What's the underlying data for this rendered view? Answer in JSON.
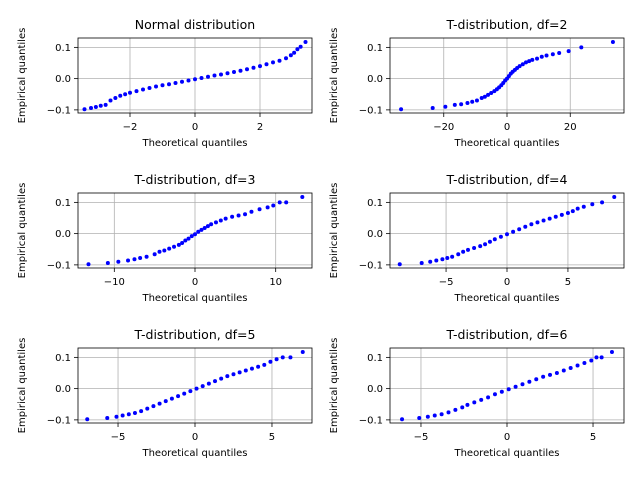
{
  "figure": {
    "background": "#ffffff",
    "marker_color": "#0000ff",
    "grid_color": "#b0b0b0"
  },
  "chart_data": [
    {
      "type": "scatter",
      "title": "Normal distribution",
      "xlabel": "Theoretical quantiles",
      "ylabel": "Empirical quantiles",
      "xlim": [
        -3.6,
        3.6
      ],
      "ylim": [
        -0.11,
        0.13
      ],
      "xticks": [
        -2,
        0,
        2
      ],
      "xtick_labels": [
        "−2",
        "0",
        "2"
      ],
      "yticks": [
        -0.1,
        0.0,
        0.1
      ],
      "ytick_labels": [
        "−0.1",
        "0.0",
        "0.1"
      ],
      "grid": true,
      "points": [
        [
          -3.4,
          -0.098
        ],
        [
          -3.2,
          -0.094
        ],
        [
          -3.05,
          -0.091
        ],
        [
          -2.9,
          -0.087
        ],
        [
          -2.75,
          -0.084
        ],
        [
          -2.6,
          -0.07
        ],
        [
          -2.45,
          -0.062
        ],
        [
          -2.3,
          -0.055
        ],
        [
          -2.15,
          -0.05
        ],
        [
          -2.0,
          -0.045
        ],
        [
          -1.8,
          -0.04
        ],
        [
          -1.6,
          -0.035
        ],
        [
          -1.4,
          -0.03
        ],
        [
          -1.2,
          -0.025
        ],
        [
          -1.0,
          -0.021
        ],
        [
          -0.8,
          -0.018
        ],
        [
          -0.6,
          -0.014
        ],
        [
          -0.4,
          -0.01
        ],
        [
          -0.2,
          -0.006
        ],
        [
          0.0,
          -0.002
        ],
        [
          0.2,
          0.002
        ],
        [
          0.4,
          0.006
        ],
        [
          0.6,
          0.01
        ],
        [
          0.8,
          0.013
        ],
        [
          1.0,
          0.017
        ],
        [
          1.2,
          0.021
        ],
        [
          1.4,
          0.025
        ],
        [
          1.6,
          0.03
        ],
        [
          1.8,
          0.035
        ],
        [
          2.0,
          0.04
        ],
        [
          2.2,
          0.046
        ],
        [
          2.4,
          0.052
        ],
        [
          2.6,
          0.057
        ],
        [
          2.8,
          0.065
        ],
        [
          2.95,
          0.075
        ],
        [
          3.05,
          0.083
        ],
        [
          3.15,
          0.094
        ],
        [
          3.25,
          0.102
        ],
        [
          3.4,
          0.117
        ]
      ]
    },
    {
      "type": "scatter",
      "title": "T-distribution, df=2",
      "xlabel": "Theoretical quantiles",
      "ylabel": "Empirical quantiles",
      "xlim": [
        -37,
        37
      ],
      "ylim": [
        -0.11,
        0.13
      ],
      "xticks": [
        -20,
        0,
        20
      ],
      "xtick_labels": [
        "−20",
        "0",
        "20"
      ],
      "yticks": [
        -0.1,
        0.0,
        0.1
      ],
      "ytick_labels": [
        "−0.1",
        "0.0",
        "0.1"
      ],
      "grid": true,
      "points": [
        [
          -33.5,
          -0.098
        ],
        [
          -23.5,
          -0.094
        ],
        [
          -19.5,
          -0.09
        ],
        [
          -16.5,
          -0.084
        ],
        [
          -14.5,
          -0.082
        ],
        [
          -12.5,
          -0.078
        ],
        [
          -11.0,
          -0.074
        ],
        [
          -9.5,
          -0.07
        ],
        [
          -8.0,
          -0.062
        ],
        [
          -7.0,
          -0.058
        ],
        [
          -6.0,
          -0.052
        ],
        [
          -5.0,
          -0.046
        ],
        [
          -4.0,
          -0.04
        ],
        [
          -3.2,
          -0.034
        ],
        [
          -2.5,
          -0.028
        ],
        [
          -1.8,
          -0.021
        ],
        [
          -1.2,
          -0.014
        ],
        [
          -0.6,
          -0.006
        ],
        [
          0.0,
          0.0
        ],
        [
          0.6,
          0.008
        ],
        [
          1.2,
          0.016
        ],
        [
          1.8,
          0.022
        ],
        [
          2.5,
          0.028
        ],
        [
          3.2,
          0.034
        ],
        [
          4.0,
          0.04
        ],
        [
          5.0,
          0.046
        ],
        [
          6.0,
          0.052
        ],
        [
          7.0,
          0.056
        ],
        [
          8.0,
          0.06
        ],
        [
          9.5,
          0.064
        ],
        [
          11.0,
          0.07
        ],
        [
          12.5,
          0.074
        ],
        [
          14.5,
          0.078
        ],
        [
          16.5,
          0.082
        ],
        [
          19.5,
          0.088
        ],
        [
          23.5,
          0.1
        ],
        [
          33.5,
          0.117
        ]
      ]
    },
    {
      "type": "scatter",
      "title": "T-distribution, df=3",
      "xlabel": "Theoretical quantiles",
      "ylabel": "Empirical quantiles",
      "xlim": [
        -14.5,
        14.5
      ],
      "ylim": [
        -0.11,
        0.13
      ],
      "xticks": [
        -10,
        0,
        10
      ],
      "xtick_labels": [
        "−10",
        "0",
        "10"
      ],
      "yticks": [
        -0.1,
        0.0,
        0.1
      ],
      "ytick_labels": [
        "−0.1",
        "0.0",
        "0.1"
      ],
      "grid": true,
      "points": [
        [
          -13.2,
          -0.098
        ],
        [
          -10.8,
          -0.094
        ],
        [
          -9.5,
          -0.09
        ],
        [
          -8.3,
          -0.086
        ],
        [
          -7.5,
          -0.082
        ],
        [
          -6.8,
          -0.078
        ],
        [
          -6.0,
          -0.074
        ],
        [
          -5.0,
          -0.066
        ],
        [
          -4.4,
          -0.058
        ],
        [
          -3.8,
          -0.054
        ],
        [
          -3.2,
          -0.048
        ],
        [
          -2.6,
          -0.042
        ],
        [
          -2.0,
          -0.036
        ],
        [
          -1.6,
          -0.03
        ],
        [
          -1.2,
          -0.022
        ],
        [
          -0.8,
          -0.016
        ],
        [
          -0.4,
          -0.008
        ],
        [
          0.0,
          -0.002
        ],
        [
          0.4,
          0.006
        ],
        [
          0.8,
          0.012
        ],
        [
          1.2,
          0.018
        ],
        [
          1.6,
          0.024
        ],
        [
          2.0,
          0.03
        ],
        [
          2.6,
          0.036
        ],
        [
          3.2,
          0.042
        ],
        [
          3.8,
          0.048
        ],
        [
          4.6,
          0.054
        ],
        [
          5.4,
          0.058
        ],
        [
          6.2,
          0.062
        ],
        [
          7.0,
          0.07
        ],
        [
          8.0,
          0.078
        ],
        [
          9.0,
          0.084
        ],
        [
          9.7,
          0.09
        ],
        [
          10.5,
          0.1
        ],
        [
          11.3,
          0.1
        ],
        [
          13.3,
          0.117
        ]
      ]
    },
    {
      "type": "scatter",
      "title": "T-distribution, df=4",
      "xlabel": "Theoretical quantiles",
      "ylabel": "Empirical quantiles",
      "xlim": [
        -9.6,
        9.6
      ],
      "ylim": [
        -0.11,
        0.13
      ],
      "xticks": [
        -5,
        0,
        5
      ],
      "xtick_labels": [
        "−5",
        "0",
        "5"
      ],
      "yticks": [
        -0.1,
        0.0,
        0.1
      ],
      "ytick_labels": [
        "−0.1",
        "0.0",
        "0.1"
      ],
      "grid": true,
      "points": [
        [
          -8.8,
          -0.098
        ],
        [
          -7.0,
          -0.094
        ],
        [
          -6.3,
          -0.09
        ],
        [
          -5.8,
          -0.086
        ],
        [
          -5.3,
          -0.082
        ],
        [
          -4.9,
          -0.078
        ],
        [
          -4.5,
          -0.074
        ],
        [
          -4.0,
          -0.066
        ],
        [
          -3.6,
          -0.058
        ],
        [
          -3.2,
          -0.052
        ],
        [
          -2.7,
          -0.046
        ],
        [
          -2.2,
          -0.04
        ],
        [
          -1.8,
          -0.034
        ],
        [
          -1.4,
          -0.026
        ],
        [
          -1.0,
          -0.018
        ],
        [
          -0.5,
          -0.01
        ],
        [
          0.0,
          -0.002
        ],
        [
          0.5,
          0.006
        ],
        [
          1.0,
          0.014
        ],
        [
          1.5,
          0.022
        ],
        [
          2.0,
          0.03
        ],
        [
          2.5,
          0.036
        ],
        [
          3.0,
          0.042
        ],
        [
          3.5,
          0.048
        ],
        [
          4.0,
          0.054
        ],
        [
          4.5,
          0.06
        ],
        [
          5.0,
          0.066
        ],
        [
          5.4,
          0.072
        ],
        [
          5.8,
          0.08
        ],
        [
          6.3,
          0.086
        ],
        [
          7.0,
          0.094
        ],
        [
          7.8,
          0.1
        ],
        [
          8.8,
          0.117
        ]
      ]
    },
    {
      "type": "scatter",
      "title": "T-distribution, df=5",
      "xlabel": "Theoretical quantiles",
      "ylabel": "Empirical quantiles",
      "xlim": [
        -7.6,
        7.6
      ],
      "ylim": [
        -0.11,
        0.13
      ],
      "xticks": [
        -5,
        0,
        5
      ],
      "xtick_labels": [
        "−5",
        "0",
        "5"
      ],
      "yticks": [
        -0.1,
        0.0,
        0.1
      ],
      "ytick_labels": [
        "−0.1",
        "0.0",
        "0.1"
      ],
      "grid": true,
      "points": [
        [
          -7.0,
          -0.098
        ],
        [
          -5.7,
          -0.094
        ],
        [
          -5.1,
          -0.09
        ],
        [
          -4.7,
          -0.086
        ],
        [
          -4.3,
          -0.082
        ],
        [
          -3.9,
          -0.078
        ],
        [
          -3.5,
          -0.072
        ],
        [
          -3.1,
          -0.064
        ],
        [
          -2.7,
          -0.056
        ],
        [
          -2.3,
          -0.048
        ],
        [
          -1.9,
          -0.04
        ],
        [
          -1.5,
          -0.032
        ],
        [
          -1.1,
          -0.024
        ],
        [
          -0.7,
          -0.016
        ],
        [
          -0.3,
          -0.008
        ],
        [
          0.1,
          0.0
        ],
        [
          0.5,
          0.008
        ],
        [
          0.9,
          0.016
        ],
        [
          1.3,
          0.024
        ],
        [
          1.7,
          0.032
        ],
        [
          2.1,
          0.04
        ],
        [
          2.5,
          0.046
        ],
        [
          2.9,
          0.052
        ],
        [
          3.3,
          0.058
        ],
        [
          3.7,
          0.064
        ],
        [
          4.1,
          0.07
        ],
        [
          4.5,
          0.076
        ],
        [
          4.9,
          0.086
        ],
        [
          5.3,
          0.094
        ],
        [
          5.7,
          0.1
        ],
        [
          6.2,
          0.1
        ],
        [
          7.0,
          0.117
        ]
      ]
    },
    {
      "type": "scatter",
      "title": "T-distribution, df=6",
      "xlabel": "Theoretical quantiles",
      "ylabel": "Empirical quantiles",
      "xlim": [
        -6.8,
        6.8
      ],
      "ylim": [
        -0.11,
        0.13
      ],
      "xticks": [
        -5,
        0,
        5
      ],
      "xtick_labels": [
        "−5",
        "0",
        "5"
      ],
      "yticks": [
        -0.1,
        0.0,
        0.1
      ],
      "ytick_labels": [
        "−0.1",
        "0.0",
        "0.1"
      ],
      "grid": true,
      "points": [
        [
          -6.1,
          -0.098
        ],
        [
          -5.1,
          -0.094
        ],
        [
          -4.6,
          -0.09
        ],
        [
          -4.2,
          -0.086
        ],
        [
          -3.8,
          -0.082
        ],
        [
          -3.4,
          -0.076
        ],
        [
          -3.0,
          -0.068
        ],
        [
          -2.6,
          -0.06
        ],
        [
          -2.3,
          -0.052
        ],
        [
          -1.9,
          -0.044
        ],
        [
          -1.5,
          -0.036
        ],
        [
          -1.1,
          -0.028
        ],
        [
          -0.7,
          -0.018
        ],
        [
          -0.3,
          -0.01
        ],
        [
          0.1,
          -0.002
        ],
        [
          0.5,
          0.006
        ],
        [
          0.9,
          0.014
        ],
        [
          1.3,
          0.022
        ],
        [
          1.7,
          0.03
        ],
        [
          2.1,
          0.038
        ],
        [
          2.5,
          0.044
        ],
        [
          2.9,
          0.05
        ],
        [
          3.3,
          0.058
        ],
        [
          3.7,
          0.066
        ],
        [
          4.1,
          0.074
        ],
        [
          4.5,
          0.082
        ],
        [
          4.9,
          0.09
        ],
        [
          5.2,
          0.1
        ],
        [
          5.5,
          0.1
        ],
        [
          6.1,
          0.117
        ]
      ]
    }
  ]
}
